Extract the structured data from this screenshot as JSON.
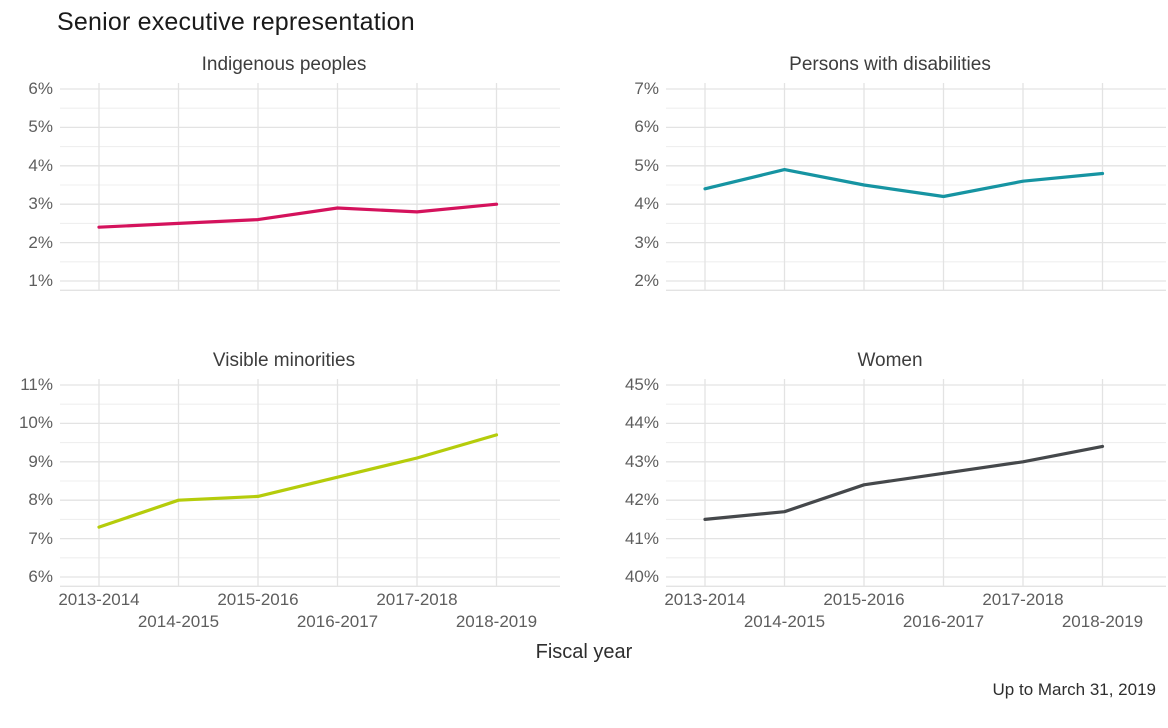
{
  "page": {
    "title": "Senior executive representation",
    "x_axis_title": "Fiscal year",
    "caption": "Up to March 31, 2019"
  },
  "chart_data": [
    {
      "type": "line",
      "title": "Indigenous peoples",
      "x": [
        "2013-2014",
        "2014-2015",
        "2015-2016",
        "2016-2017",
        "2017-2018",
        "2018-2019"
      ],
      "values": [
        2.4,
        2.5,
        2.6,
        2.9,
        2.8,
        3.0
      ],
      "unit": "%",
      "y_ticks": [
        6,
        5,
        4,
        3,
        2,
        1
      ],
      "ylim": [
        0.75,
        6.25
      ],
      "xlabel": "Fiscal year",
      "ylabel": "",
      "color": "#d4125c",
      "grid": true,
      "legend": "none"
    },
    {
      "type": "line",
      "title": "Persons with disabilities",
      "x": [
        "2013-2014",
        "2014-2015",
        "2015-2016",
        "2016-2017",
        "2017-2018",
        "2018-2019"
      ],
      "values": [
        4.4,
        4.9,
        4.5,
        4.2,
        4.6,
        4.8
      ],
      "unit": "%",
      "y_ticks": [
        7,
        6,
        5,
        4,
        3,
        2
      ],
      "ylim": [
        1.75,
        7.25
      ],
      "xlabel": "Fiscal year",
      "ylabel": "",
      "color": "#1694a2",
      "grid": true,
      "legend": "none"
    },
    {
      "type": "line",
      "title": "Visible minorities",
      "x": [
        "2013-2014",
        "2014-2015",
        "2015-2016",
        "2016-2017",
        "2017-2018",
        "2018-2019"
      ],
      "values": [
        7.3,
        8.0,
        8.1,
        8.6,
        9.1,
        9.7
      ],
      "unit": "%",
      "y_ticks": [
        11,
        10,
        9,
        8,
        7,
        6
      ],
      "ylim": [
        5.75,
        11.25
      ],
      "xlabel": "Fiscal year",
      "ylabel": "",
      "color": "#b5cc0b",
      "grid": true,
      "legend": "none"
    },
    {
      "type": "line",
      "title": "Women",
      "x": [
        "2013-2014",
        "2014-2015",
        "2015-2016",
        "2016-2017",
        "2017-2018",
        "2018-2019"
      ],
      "values": [
        41.5,
        41.7,
        42.4,
        42.7,
        43.0,
        43.4
      ],
      "unit": "%",
      "y_ticks": [
        45,
        44,
        43,
        42,
        41,
        40
      ],
      "ylim": [
        39.75,
        45.25
      ],
      "xlabel": "Fiscal year",
      "ylabel": "",
      "color": "#45484b",
      "grid": true,
      "legend": "none"
    }
  ],
  "style": {
    "grid_major_color": "#e3e3e3",
    "grid_minor_color": "#efefef",
    "background": "#ffffff"
  }
}
